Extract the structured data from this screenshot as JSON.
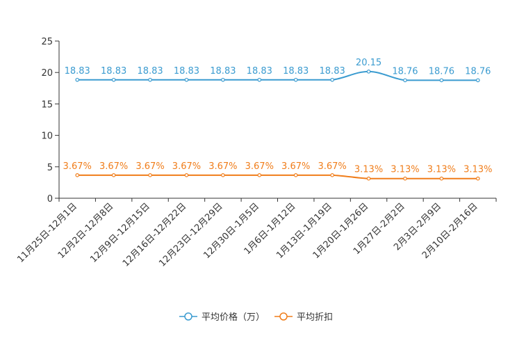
{
  "chart_data": {
    "type": "line",
    "categories": [
      "11月25日-12月1日",
      "12月2日-12月8日",
      "12月9日-12月15日",
      "12月16日-12月22日",
      "12月23日-12月29日",
      "12月30日-1月5日",
      "1月6日-1月12日",
      "1月13日-1月19日",
      "1月20日-1月26日",
      "1月27日-2月2日",
      "2月3日-2月9日",
      "2月10日-2月16日"
    ],
    "ylim": [
      0,
      25
    ],
    "yticks": [
      0,
      5,
      10,
      15,
      20,
      25
    ],
    "grid": false,
    "legend_position": "bottom-center",
    "series": [
      {
        "name": "平均价格（万）",
        "color": "#3a9bd0",
        "values": [
          18.83,
          18.83,
          18.83,
          18.83,
          18.83,
          18.83,
          18.83,
          18.83,
          20.15,
          18.76,
          18.76,
          18.76
        ],
        "labels": [
          "18.83",
          "18.83",
          "18.83",
          "18.83",
          "18.83",
          "18.83",
          "18.83",
          "18.83",
          "20.15",
          "18.76",
          "18.76",
          "18.76"
        ]
      },
      {
        "name": "平均折扣",
        "color": "#f07d1a",
        "values": [
          3.67,
          3.67,
          3.67,
          3.67,
          3.67,
          3.67,
          3.67,
          3.67,
          3.13,
          3.13,
          3.13,
          3.13
        ],
        "labels": [
          "3.67%",
          "3.67%",
          "3.67%",
          "3.67%",
          "3.67%",
          "3.67%",
          "3.67%",
          "3.67%",
          "3.13%",
          "3.13%",
          "3.13%",
          "3.13%"
        ]
      }
    ]
  }
}
